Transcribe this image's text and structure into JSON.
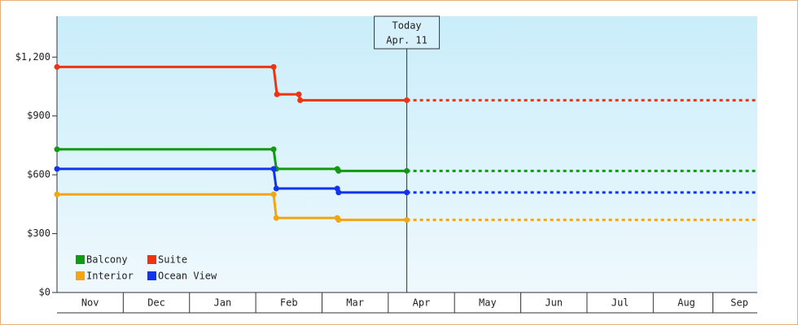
{
  "chart_data": {
    "type": "line",
    "xlim": [
      0,
      10.57
    ],
    "xticks": [
      {
        "value": 0.5,
        "label": "Nov"
      },
      {
        "value": 1.5,
        "label": "Dec"
      },
      {
        "value": 2.5,
        "label": "Jan"
      },
      {
        "value": 3.5,
        "label": "Feb"
      },
      {
        "value": 4.5,
        "label": "Mar"
      },
      {
        "value": 5.5,
        "label": "Apr"
      },
      {
        "value": 6.5,
        "label": "May"
      },
      {
        "value": 7.5,
        "label": "Jun"
      },
      {
        "value": 8.5,
        "label": "Jul"
      },
      {
        "value": 9.5,
        "label": "Aug"
      },
      {
        "value": 10.3,
        "label": "Sep"
      }
    ],
    "ylim": [
      0,
      1400
    ],
    "yticks": [
      {
        "value": 0,
        "label": "$0"
      },
      {
        "value": 300,
        "label": "$300"
      },
      {
        "value": 600,
        "label": "$600"
      },
      {
        "value": 900,
        "label": "$900"
      },
      {
        "value": 1200,
        "label": "$1,200"
      }
    ],
    "today": {
      "x": 5.28,
      "label": "Today",
      "date": "Apr. 11"
    },
    "series": [
      {
        "name": "Balcony",
        "color": "#119911",
        "x": [
          0,
          3.27,
          3.31,
          4.23,
          4.25,
          5.28
        ],
        "values": [
          730,
          730,
          630,
          630,
          620,
          620
        ]
      },
      {
        "name": "Suite",
        "color": "#ee3311",
        "x": [
          0,
          3.27,
          3.32,
          3.65,
          3.67,
          5.28
        ],
        "values": [
          1150,
          1150,
          1010,
          1010,
          980,
          980
        ]
      },
      {
        "name": "Interior",
        "color": "#f5a511",
        "x": [
          0,
          3.27,
          3.31,
          4.23,
          4.25,
          5.28
        ],
        "values": [
          500,
          500,
          380,
          380,
          370,
          370
        ]
      },
      {
        "name": "Ocean View",
        "color": "#1133ee",
        "x": [
          0,
          3.27,
          3.31,
          4.23,
          4.25,
          5.28
        ],
        "values": [
          630,
          630,
          530,
          530,
          510,
          510
        ]
      }
    ]
  }
}
